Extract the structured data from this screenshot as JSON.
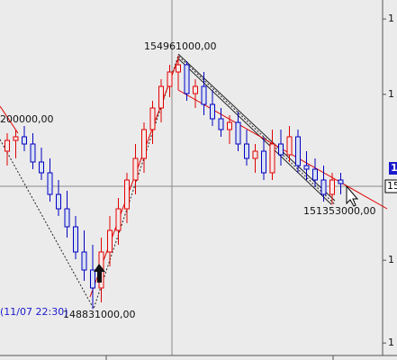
{
  "chart_data": {
    "type": "candlestick",
    "up_color": "#e00000",
    "down_color": "#0000c0",
    "ylim": [
      147600000,
      156300000
    ],
    "yticks": [
      {
        "value": 155840000,
        "label": "1"
      },
      {
        "value": 154020000,
        "label": "1"
      },
      {
        "value": 150010000,
        "label": "1"
      },
      {
        "value": 148010000,
        "label": "1"
      }
    ],
    "open": [
      152646000,
      152907000,
      152994000,
      152820000,
      152385000,
      152124000,
      151602000,
      151254000,
      150819000,
      150210000,
      149775000,
      149340000,
      150210000,
      150732000,
      151254000,
      151950000,
      152472000,
      153168000,
      153690000,
      154212000,
      154560000,
      154734000,
      154038000,
      154212000,
      153777000,
      153429000,
      153168000,
      153342000,
      152820000,
      152472000,
      152646000,
      152124000,
      152820000,
      152559000,
      152994000,
      152298000,
      152211000,
      151950000,
      151602000,
      151950000
    ],
    "high": [
      153081000,
      153168000,
      153255000,
      153081000,
      152733000,
      152472000,
      151950000,
      151689000,
      151080000,
      150732000,
      150384000,
      150558000,
      151080000,
      151515000,
      152124000,
      152820000,
      153342000,
      153864000,
      154386000,
      154734000,
      154961000,
      154821000,
      154386000,
      154560000,
      154125000,
      153690000,
      153516000,
      153603000,
      153168000,
      152820000,
      152994000,
      153168000,
      153168000,
      153255000,
      153168000,
      152646000,
      152472000,
      152298000,
      152124000,
      152124000
    ],
    "low": [
      152298000,
      152472000,
      152646000,
      152211000,
      151950000,
      151428000,
      151080000,
      150558000,
      150036000,
      149514000,
      148831000,
      148992000,
      149862000,
      150384000,
      150906000,
      151602000,
      152124000,
      152820000,
      153342000,
      153951000,
      154125000,
      153864000,
      153690000,
      153516000,
      153255000,
      152994000,
      152820000,
      152646000,
      152298000,
      152124000,
      151950000,
      151950000,
      152298000,
      152385000,
      152124000,
      151950000,
      151776000,
      151428000,
      151353000,
      151602000
    ],
    "close": [
      152907000,
      152994000,
      152820000,
      152385000,
      152124000,
      151602000,
      151254000,
      150819000,
      150210000,
      149775000,
      149340000,
      150210000,
      150732000,
      151254000,
      151950000,
      152472000,
      153168000,
      153690000,
      154212000,
      154560000,
      154734000,
      154038000,
      154212000,
      153777000,
      153429000,
      153168000,
      153342000,
      152820000,
      152472000,
      152646000,
      152124000,
      152820000,
      152559000,
      152994000,
      152298000,
      152211000,
      151950000,
      151602000,
      151950000,
      151863000
    ],
    "annotations": [
      "154961000,00",
      "200000,00",
      "151353000,00",
      "148831000,00",
      "(11/07 22:30)"
    ],
    "price_marker": "1",
    "crosshair_label": "15"
  }
}
